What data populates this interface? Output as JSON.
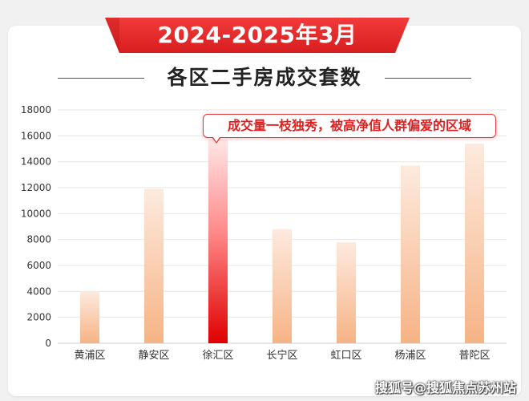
{
  "header": {
    "banner_title": "2024-2025年3月",
    "subtitle": "各区二手房成交套数"
  },
  "callout": {
    "text": "成交量一枝独秀，被高净值人群偏爱的区域",
    "target_category": "徐汇区"
  },
  "watermark": {
    "text": "搜狐号@搜狐焦点苏州站"
  },
  "colors": {
    "banner_red": "#e32626",
    "bar_light_top": "#fde6d6",
    "bar_light_bottom": "#f7b98c",
    "bar_highlight_top": "#ffd6d6",
    "bar_highlight_bottom": "#e00000",
    "grid": "#e6e6e6",
    "axis_text": "#333333"
  },
  "chart_data": {
    "type": "bar",
    "title": "各区二手房成交套数",
    "subtitle": "2024-2025年3月",
    "categories": [
      "黄浦区",
      "静安区",
      "徐汇区",
      "长宁区",
      "虹口区",
      "杨浦区",
      "普陀区"
    ],
    "values": [
      4000,
      11900,
      15700,
      8800,
      7800,
      13700,
      15400
    ],
    "highlight": "徐汇区",
    "ylim": [
      0,
      18000
    ],
    "yticks": [
      0,
      2000,
      4000,
      6000,
      8000,
      10000,
      12000,
      14000,
      16000,
      18000
    ],
    "grid": true,
    "xlabel": "",
    "ylabel": ""
  }
}
